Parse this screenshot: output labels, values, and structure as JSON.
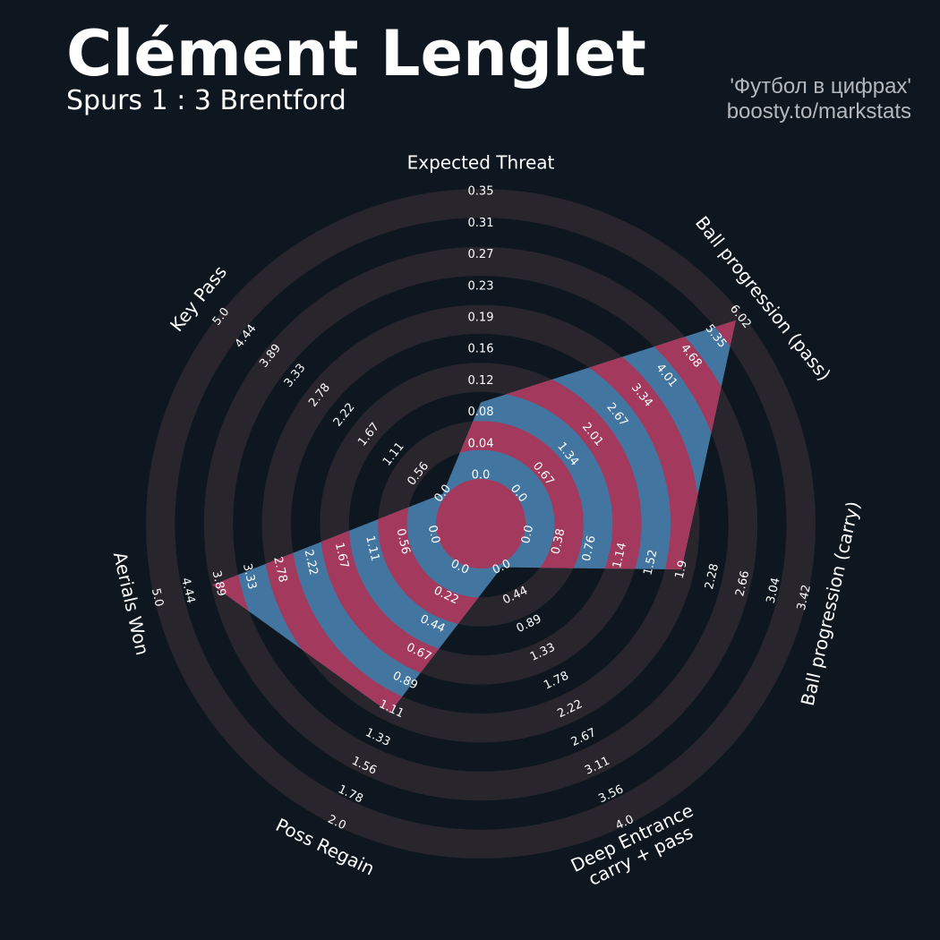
{
  "chart_data": {
    "type": "radar",
    "title": "Clément Lenglet",
    "subtitle": "Spurs 1 : 3 Brentford",
    "credits": [
      "'Футбол в цифрах'",
      "boosty.to/markstats"
    ],
    "colors": {
      "background": "#0e1720",
      "ring": "#28252c",
      "polygon": "#4276a1",
      "polygon_alt": "#a33a5e"
    },
    "params": [
      {
        "label": [
          "Expected Threat"
        ],
        "value": 0.09,
        "ticks": [
          {
            "value": 0,
            "label": "0.0"
          },
          0.04,
          0.08,
          0.12,
          0.16,
          0.19,
          0.23,
          0.27,
          0.31,
          0.35
        ]
      },
      {
        "label": [
          "Ball progression (pass)"
        ],
        "value": 5.9,
        "ticks": [
          {
            "value": 0,
            "label": "0.0"
          },
          0.67,
          1.34,
          2.01,
          2.67,
          3.34,
          4.01,
          4.68,
          5.35,
          6.02
        ]
      },
      {
        "label": [
          "Ball progression (carry)"
        ],
        "value": 1.9,
        "ticks": [
          {
            "value": 0,
            "label": "0.0"
          },
          0.38,
          0.76,
          1.14,
          1.52,
          1.9,
          2.28,
          2.66,
          3.04,
          3.42
        ]
      },
      {
        "label": [
          "Deep Entrance",
          "carry + pass"
        ],
        "value": 0,
        "ticks": [
          {
            "value": 0,
            "label": "0.0"
          },
          0.44,
          0.89,
          1.33,
          1.78,
          2.22,
          2.67,
          3.11,
          3.56,
          {
            "value": 4,
            "label": "4.0"
          }
        ]
      },
      {
        "label": [
          "Poss Regain"
        ],
        "value": 1.14,
        "ticks": [
          {
            "value": 0,
            "label": "0.0"
          },
          0.22,
          0.44,
          0.67,
          0.89,
          1.11,
          1.33,
          1.56,
          1.78,
          {
            "value": 2,
            "label": "2.0"
          }
        ]
      },
      {
        "label": [
          "Aerials Won"
        ],
        "value": 4.0,
        "ticks": [
          {
            "value": 0,
            "label": "0.0"
          },
          0.56,
          1.11,
          1.67,
          2.22,
          2.78,
          3.33,
          3.89,
          4.44,
          {
            "value": 5,
            "label": "5.0"
          }
        ]
      },
      {
        "label": [
          "Key Pass"
        ],
        "value": 0,
        "ticks": [
          {
            "value": 0,
            "label": "0.0"
          },
          0.56,
          1.11,
          1.67,
          2.22,
          2.78,
          3.33,
          3.89,
          4.44,
          {
            "value": 5,
            "label": "5.0"
          }
        ]
      }
    ]
  }
}
